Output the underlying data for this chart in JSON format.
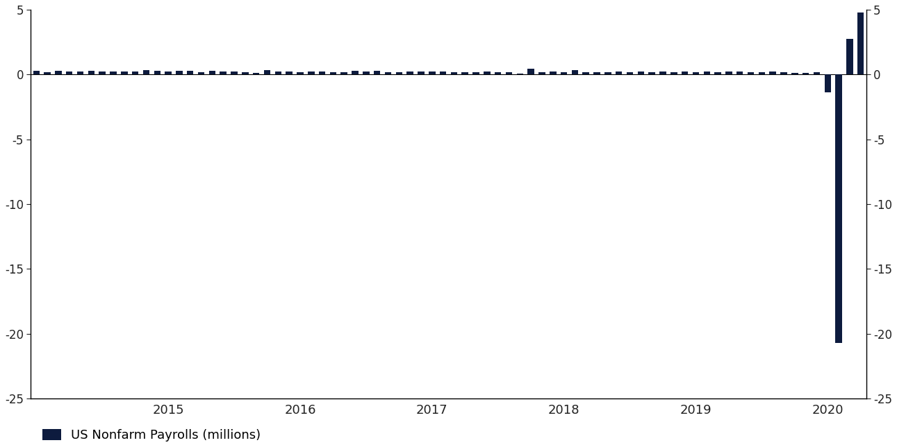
{
  "title": "",
  "bar_color": "#0d1b3e",
  "background_color": "#ffffff",
  "legend_label": "US Nonfarm Payrolls (millions)",
  "ylim": [
    -25,
    5
  ],
  "yticks": [
    -25,
    -20,
    -15,
    -10,
    -5,
    0,
    5
  ],
  "bar_width": 0.6,
  "values": [
    0.26,
    0.2,
    0.26,
    0.22,
    0.22,
    0.29,
    0.21,
    0.21,
    0.25,
    0.24,
    0.32,
    0.29,
    0.24,
    0.27,
    0.29,
    0.19,
    0.28,
    0.22,
    0.22,
    0.17,
    0.14,
    0.31,
    0.25,
    0.25,
    0.15,
    0.24,
    0.22,
    0.15,
    0.16,
    0.29,
    0.25,
    0.26,
    0.16,
    0.19,
    0.21,
    0.22,
    0.23,
    0.23,
    0.18,
    0.17,
    0.15,
    0.22,
    0.19,
    0.19,
    0.08,
    0.47,
    0.18,
    0.21,
    0.17,
    0.31,
    0.19,
    0.19,
    0.17,
    0.23,
    0.16,
    0.21,
    0.16,
    0.23,
    0.18,
    0.23,
    0.18,
    0.24,
    0.2,
    0.22,
    0.22,
    0.18,
    0.17,
    0.22,
    0.18,
    0.14,
    0.13,
    0.18,
    -1.37,
    -20.69,
    2.73,
    4.78
  ],
  "year_tick_indices": [
    12,
    24,
    36,
    48,
    60,
    72
  ],
  "year_labels": [
    "2015",
    "2016",
    "2017",
    "2018",
    "2019",
    "2020"
  ]
}
